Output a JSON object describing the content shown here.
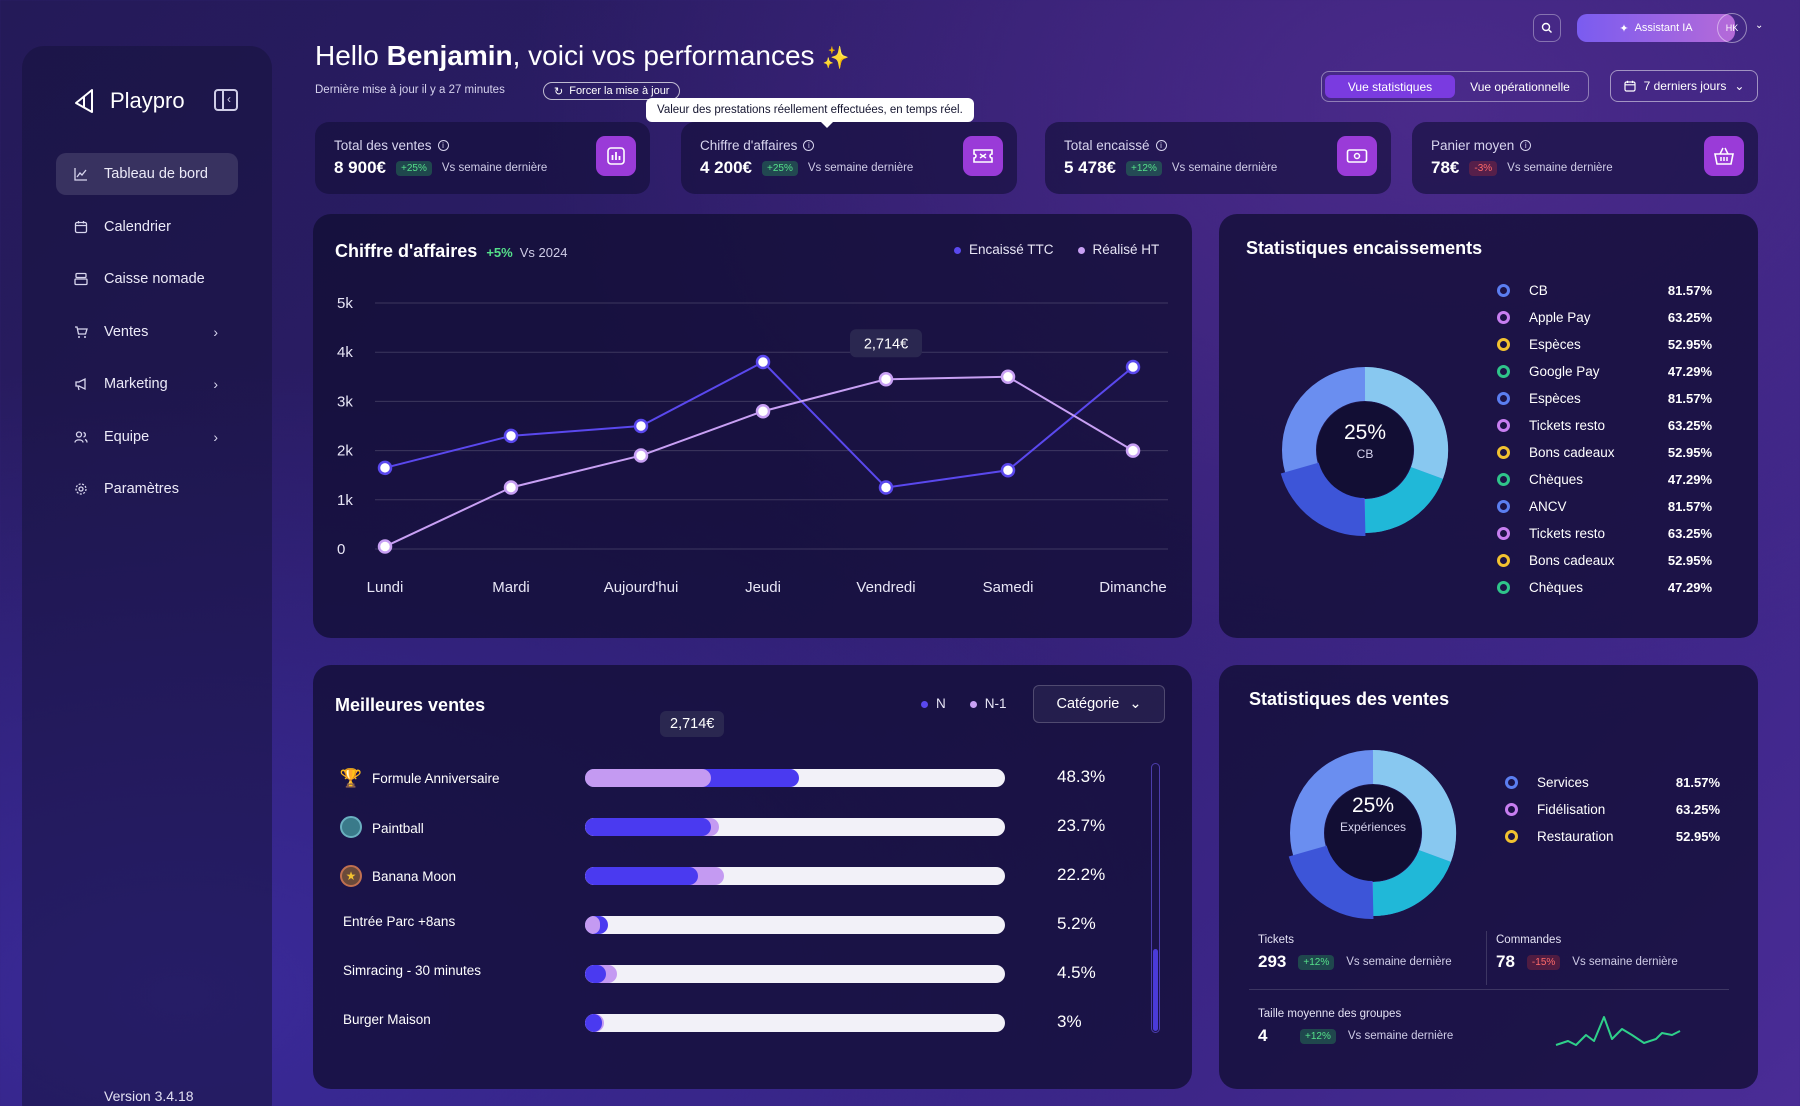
{
  "brand": {
    "name": "Playpro"
  },
  "sidebar": {
    "items": [
      {
        "label": "Tableau de bord",
        "icon": "chart-line-icon",
        "active": true
      },
      {
        "label": "Calendrier",
        "icon": "calendar-icon"
      },
      {
        "label": "Caisse nomade",
        "icon": "cash-register-icon"
      },
      {
        "label": "Ventes",
        "icon": "cart-icon",
        "has_children": true
      },
      {
        "label": "Marketing",
        "icon": "megaphone-icon",
        "has_children": true
      },
      {
        "label": "Equipe",
        "icon": "users-icon",
        "has_children": true
      },
      {
        "label": "Paramètres",
        "icon": "gear-icon"
      }
    ],
    "version": "Version 3.4.18"
  },
  "topbar": {
    "assistant_label": "Assistant IA",
    "avatar_initials": "HK"
  },
  "header": {
    "greeting_prefix": "Hello ",
    "greeting_name": "Benjamin",
    "greeting_suffix": ", voici vos performances",
    "last_update": "Dernière mise à jour il y a 27 minutes",
    "force_update": "Forcer la mise à jour",
    "tooltip": "Valeur des prestations réellement effectuées, en temps réel.",
    "view_stats": "Vue statistiques",
    "view_ops": "Vue opérationnelle",
    "date_range": "7 derniers jours"
  },
  "kpis": [
    {
      "label": "Total des ventes",
      "value": "8 900€",
      "delta": "+25%",
      "trend": "up",
      "vs": "Vs semaine dernière",
      "icon": "bar-chart-icon"
    },
    {
      "label": "Chiffre d'affaires",
      "value": "4 200€",
      "delta": "+25%",
      "trend": "up",
      "vs": "Vs semaine dernière",
      "icon": "ticket-icon"
    },
    {
      "label": "Total encaissé",
      "value": "5 478€",
      "delta": "+12%",
      "trend": "up",
      "vs": "Vs semaine dernière",
      "icon": "banknote-icon"
    },
    {
      "label": "Panier moyen",
      "value": "78€",
      "delta": "-3%",
      "trend": "down",
      "vs": "Vs semaine dernière",
      "icon": "basket-icon"
    }
  ],
  "revenue_chart": {
    "title": "Chiffre d'affaires",
    "delta": "+5%",
    "vs": "Vs 2024",
    "tooltip_value": "2,714€",
    "legend": [
      "Encaissé TTC",
      "Réalisé HT"
    ],
    "colors": {
      "encaisse": "#5a48ee",
      "realise": "#c8a0f4"
    }
  },
  "chart_data": {
    "type": "line",
    "categories": [
      "Lundi",
      "Mardi",
      "Aujourd'hui",
      "Jeudi",
      "Vendredi",
      "Samedi",
      "Dimanche"
    ],
    "yticks": [
      "0",
      "1k",
      "2k",
      "3k",
      "4k",
      "5k"
    ],
    "ylim": [
      0,
      5000
    ],
    "series": [
      {
        "name": "Encaissé TTC",
        "values": [
          1650,
          2300,
          2500,
          3800,
          1250,
          1600,
          3700
        ]
      },
      {
        "name": "Réalisé HT",
        "values": [
          50,
          1250,
          1900,
          2800,
          3450,
          3500,
          2000
        ]
      }
    ],
    "grid": true,
    "legend_position": "top-right"
  },
  "cash_stats": {
    "title": "Statistiques encaissements",
    "center_value": "25%",
    "center_label": "CB",
    "items": [
      {
        "label": "CB",
        "pct": "81.57%",
        "color": "#5b7ef0"
      },
      {
        "label": "Apple Pay",
        "pct": "63.25%",
        "color": "#c77ef0"
      },
      {
        "label": "Espèces",
        "pct": "52.95%",
        "color": "#f2c230"
      },
      {
        "label": "Google Pay",
        "pct": "47.29%",
        "color": "#2fc48a"
      },
      {
        "label": "Espèces",
        "pct": "81.57%",
        "color": "#5b7ef0"
      },
      {
        "label": "Tickets resto",
        "pct": "63.25%",
        "color": "#c77ef0"
      },
      {
        "label": "Bons cadeaux",
        "pct": "52.95%",
        "color": "#f2c230"
      },
      {
        "label": "Chèques",
        "pct": "47.29%",
        "color": "#2fc48a"
      },
      {
        "label": "ANCV",
        "pct": "81.57%",
        "color": "#5b7ef0"
      },
      {
        "label": "Tickets resto",
        "pct": "63.25%",
        "color": "#c77ef0"
      },
      {
        "label": "Bons cadeaux",
        "pct": "52.95%",
        "color": "#f2c230"
      },
      {
        "label": "Chèques",
        "pct": "47.29%",
        "color": "#2fc48a"
      }
    ]
  },
  "best_sales": {
    "title": "Meilleures ventes",
    "legend": [
      "N",
      "N-1"
    ],
    "category_label": "Catégorie",
    "tooltip_value": "2,714€",
    "items": [
      {
        "label": "Formule Anniversaire",
        "pct": "48.3%",
        "n": 0.51,
        "n1": 0.3,
        "icon": "trophy-icon"
      },
      {
        "label": "Paintball",
        "pct": "23.7%",
        "n": 0.3,
        "n1": 0.32,
        "icon": "paintball-icon"
      },
      {
        "label": "Banana Moon",
        "pct": "22.2%",
        "n": 0.27,
        "n1": 0.33,
        "icon": "banana-moon-icon"
      },
      {
        "label": "Entrée Parc +8ans",
        "pct": "5.2%",
        "n": 0.055,
        "n1": 0.035
      },
      {
        "label": "Simracing - 30 minutes",
        "pct": "4.5%",
        "n": 0.05,
        "n1": 0.075
      },
      {
        "label": "Burger Maison",
        "pct": "3%",
        "n": 0.04,
        "n1": 0.045
      }
    ]
  },
  "sales_stats": {
    "title": "Statistiques des ventes",
    "center_value": "25%",
    "center_label": "Expériences",
    "items": [
      {
        "label": "Services",
        "pct": "81.57%",
        "color": "#5b7ef0"
      },
      {
        "label": "Fidélisation",
        "pct": "63.25%",
        "color": "#c77ef0"
      },
      {
        "label": "Restauration",
        "pct": "52.95%",
        "color": "#f2c230"
      }
    ],
    "tickets": {
      "label": "Tickets",
      "value": "293",
      "delta": "+12%",
      "vs": "Vs semaine dernière"
    },
    "orders": {
      "label": "Commandes",
      "value": "78",
      "delta": "-15%",
      "vs": "Vs semaine dernière"
    },
    "group_size": {
      "label": "Taille moyenne des groupes",
      "value": "4",
      "delta": "+12%",
      "vs": "Vs semaine dernière"
    }
  }
}
